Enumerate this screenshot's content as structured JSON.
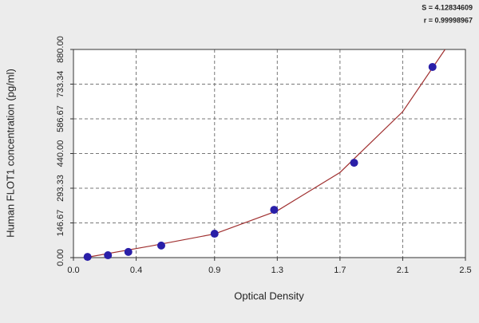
{
  "chart_data": {
    "type": "scatter",
    "y_label": "Human FLOT1 concentration (pg/ml)",
    "x_label": "Optical Density",
    "annotations": [
      "S = 4.12834609",
      "r = 0.99998967"
    ],
    "xlim": [
      0,
      2.5
    ],
    "xticks": [
      {
        "value": 0,
        "label": "0.0"
      },
      0.4,
      0.9,
      1.3,
      1.7,
      2.1,
      2.5
    ],
    "ylim": [
      0,
      880
    ],
    "yticks": [
      {
        "value": 0,
        "label": "0.00"
      },
      146.67,
      293.33,
      {
        "value": 440,
        "label": "440.00"
      },
      586.67,
      733.34,
      {
        "value": 880,
        "label": "880.00"
      }
    ],
    "grid": true,
    "series": [
      {
        "style": "points",
        "color": "#2a1fa8",
        "x": [
          0.09,
          0.22,
          0.35,
          0.56,
          0.9,
          1.28,
          1.79,
          2.29
        ],
        "values": [
          3,
          10,
          24,
          51,
          101,
          202,
          401,
          806
        ]
      },
      {
        "style": "line",
        "color": "#a03030",
        "x": [
          0.1,
          0.5,
          0.9,
          1.3,
          1.7,
          2.1,
          2.37
        ],
        "values": [
          3,
          50,
          100,
          198,
          360,
          617,
          880
        ]
      }
    ]
  }
}
